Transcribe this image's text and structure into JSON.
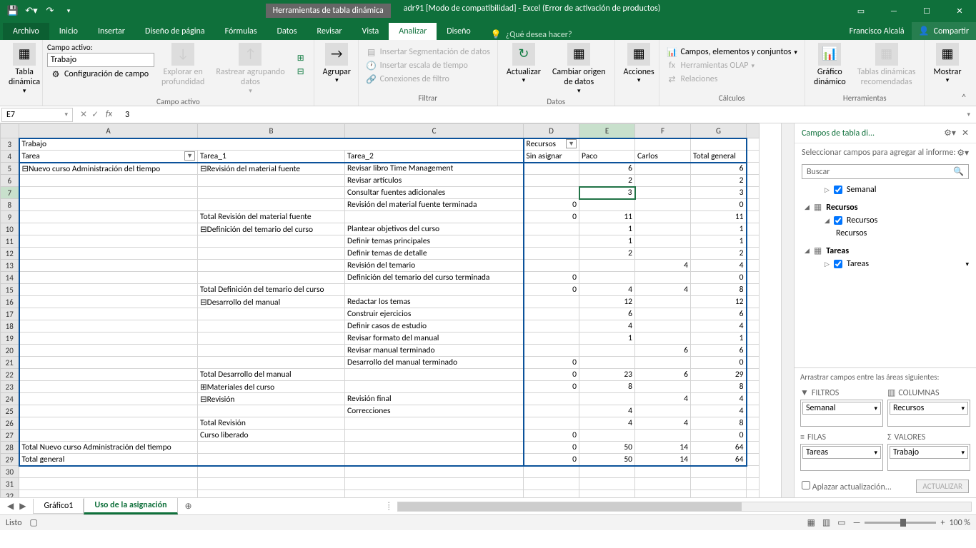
{
  "title": {
    "tools_context": "Herramientas de tabla dinámica",
    "filename": "adr91  [Modo de compatibilidad] - Excel (Error de activación de productos)"
  },
  "qat": {
    "save": "💾"
  },
  "tabs": [
    "Archivo",
    "Inicio",
    "Insertar",
    "Diseño de página",
    "Fórmulas",
    "Datos",
    "Revisar",
    "Vista",
    "Analizar",
    "Diseño"
  ],
  "tell_me": "¿Qué desea hacer?",
  "user": "Francisco Alcalá",
  "share": "Compartir",
  "ribbon": {
    "active_field_label": "Campo activo:",
    "active_field_value": "Trabajo",
    "field_settings": "Configuración de campo",
    "table_btn": "Tabla\ndinámica",
    "drill_down": "Explorar en\nprofundidad",
    "drill_up": "Rastrear agrupando\ndatos",
    "group_btn": "Agrupar",
    "slicer": "Insertar Segmentación de datos",
    "timeline": "Insertar escala de tiempo",
    "filter_conn": "Conexiones de filtro",
    "refresh": "Actualizar",
    "change_src": "Cambiar origen\nde datos",
    "actions": "Acciones",
    "calc1": "Campos, elementos y conjuntos",
    "calc2": "Herramientas OLAP",
    "calc3": "Relaciones",
    "pivot_chart": "Gráfico\ndinámico",
    "recommended": "Tablas dinámicas\nrecomendadas",
    "show": "Mostrar",
    "g_active_field": "Campo activo",
    "g_filter": "Filtrar",
    "g_data": "Datos",
    "g_calc": "Cálculos",
    "g_tools": "Herramientas"
  },
  "cell_ref": "E7",
  "cell_val": "3",
  "cols": [
    "A",
    "B",
    "C",
    "D",
    "E",
    "F",
    "G"
  ],
  "pivot": {
    "trabajo": "Trabajo",
    "recursos": "Recursos",
    "tarea": "Tarea",
    "tarea1": "Tarea_1",
    "tarea2": "Tarea_2",
    "sin_asignar": "Sin asignar",
    "paco": "Paco",
    "carlos": "Carlos",
    "total_general": "Total general"
  },
  "rows": [
    {
      "n": 5,
      "a": "⊟Nuevo curso Administración del tiempo",
      "b": "⊟Revisión del material fuente",
      "c": "Revisar libro Time Management",
      "e": "6",
      "g": "6"
    },
    {
      "n": 6,
      "c": "Revisar artículos",
      "e": "2",
      "g": "2"
    },
    {
      "n": 7,
      "c": "Consultar fuentes adicionales",
      "e": "3",
      "g": "3",
      "sel": true
    },
    {
      "n": 8,
      "c": "Revisión del material fuente terminada",
      "d": "0",
      "g": "0"
    },
    {
      "n": 9,
      "b": "Total Revisión del material fuente",
      "d": "0",
      "e": "11",
      "g": "11"
    },
    {
      "n": 10,
      "b": "⊟Definición del temario del curso",
      "c": "Plantear objetivos del curso",
      "e": "1",
      "g": "1"
    },
    {
      "n": 11,
      "c": "Definir temas principales",
      "e": "1",
      "g": "1"
    },
    {
      "n": 12,
      "c": "Definir temas de detalle",
      "e": "2",
      "g": "2"
    },
    {
      "n": 13,
      "c": "Revisión del temario",
      "f": "4",
      "g": "4"
    },
    {
      "n": 14,
      "c": "Definición del temario del curso terminada",
      "d": "0",
      "g": "0"
    },
    {
      "n": 15,
      "b": "Total Definición del temario del curso",
      "d": "0",
      "e": "4",
      "f": "4",
      "g": "8"
    },
    {
      "n": 16,
      "b": "⊟Desarrollo del manual",
      "c": "Redactar los temas",
      "e": "12",
      "g": "12"
    },
    {
      "n": 17,
      "c": "Construir ejercicios",
      "e": "6",
      "g": "6"
    },
    {
      "n": 18,
      "c": "Definir casos de estudio",
      "e": "4",
      "g": "4"
    },
    {
      "n": 19,
      "c": "Revisar formato del manual",
      "e": "1",
      "g": "1"
    },
    {
      "n": 20,
      "c": "Revisar manual terminado",
      "f": "6",
      "g": "6"
    },
    {
      "n": 21,
      "c": "Desarrollo del manual terminado",
      "d": "0",
      "g": "0"
    },
    {
      "n": 22,
      "b": "Total Desarrollo del manual",
      "d": "0",
      "e": "23",
      "f": "6",
      "g": "29"
    },
    {
      "n": 23,
      "b": "⊞Materiales del curso",
      "d": "0",
      "e": "8",
      "g": "8"
    },
    {
      "n": 24,
      "b": "⊟Revisión",
      "c": "Revisión final",
      "f": "4",
      "g": "4"
    },
    {
      "n": 25,
      "c": "Correcciones",
      "e": "4",
      "g": "4"
    },
    {
      "n": 26,
      "b": "Total Revisión",
      "e": "4",
      "f": "4",
      "g": "8"
    },
    {
      "n": 27,
      "b": "Curso liberado",
      "d": "0",
      "g": "0"
    },
    {
      "n": 28,
      "a": "Total Nuevo curso Administración del tiempo",
      "d": "0",
      "e": "50",
      "f": "14",
      "g": "64"
    },
    {
      "n": 29,
      "a": "Total general",
      "d": "0",
      "e": "50",
      "f": "14",
      "g": "64"
    },
    {
      "n": 30
    },
    {
      "n": 31
    },
    {
      "n": 32
    }
  ],
  "field_pane": {
    "title": "Campos de tabla di...",
    "sub": "Seleccionar campos para agregar al informe:",
    "search": "Buscar",
    "semanal": "Semanal",
    "recursos": "Recursos",
    "tareas": "Tareas",
    "areas_title": "Arrastrar campos entre las áreas siguientes:",
    "filtros": "FILTROS",
    "columnas": "COLUMNAS",
    "filas": "FILAS",
    "valores": "VALORES",
    "chip_filtro": "Semanal",
    "chip_col": "Recursos",
    "chip_fila": "Tareas",
    "chip_val": "Trabajo",
    "defer": "Aplazar actualización...",
    "update": "ACTUALIZAR"
  },
  "sheets": {
    "s1": "Gráfico1",
    "s2": "Uso de la asignación"
  },
  "status": {
    "ready": "Listo",
    "zoom": "100 %"
  }
}
